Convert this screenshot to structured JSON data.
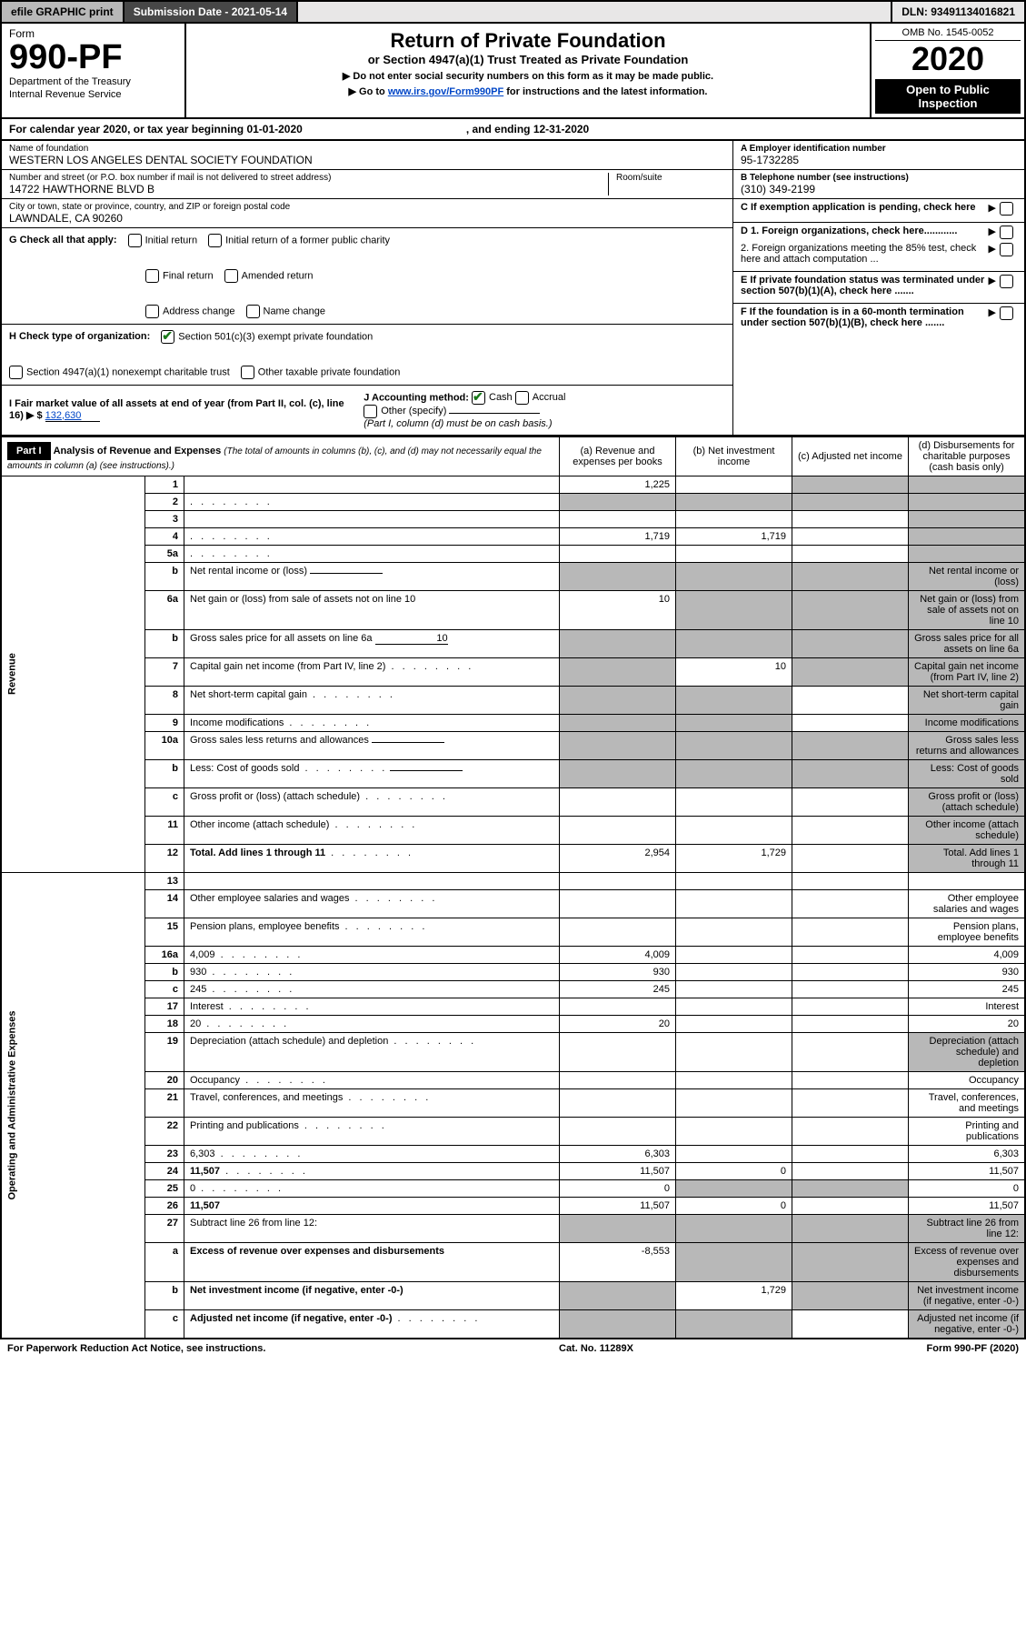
{
  "topbar": {
    "efile": "efile GRAPHIC print",
    "sub_date": "Submission Date - 2021-05-14",
    "dln": "DLN: 93491134016821"
  },
  "header": {
    "form_word": "Form",
    "form_number": "990-PF",
    "dept1": "Department of the Treasury",
    "dept2": "Internal Revenue Service",
    "title": "Return of Private Foundation",
    "subtitle": "or Section 4947(a)(1) Trust Treated as Private Foundation",
    "note1": "▶ Do not enter social security numbers on this form as it may be made public.",
    "note2_pre": "▶ Go to ",
    "note2_link": "www.irs.gov/Form990PF",
    "note2_post": " for instructions and the latest information.",
    "omb": "OMB No. 1545-0052",
    "year": "2020",
    "open": "Open to Public Inspection"
  },
  "calyear": {
    "txt1": "For calendar year 2020, or tax year beginning 01-01-2020",
    "txt2": ", and ending 12-31-2020"
  },
  "info": {
    "name_label": "Name of foundation",
    "name_val": "WESTERN LOS ANGELES DENTAL SOCIETY FOUNDATION",
    "addr_label": "Number and street (or P.O. box number if mail is not delivered to street address)",
    "addr_val": "14722 HAWTHORNE BLVD B",
    "room_label": "Room/suite",
    "city_label": "City or town, state or province, country, and ZIP or foreign postal code",
    "city_val": "LAWNDALE, CA  90260",
    "ein_label": "A Employer identification number",
    "ein_val": "95-1732285",
    "tel_label": "B Telephone number (see instructions)",
    "tel_val": "(310) 349-2199",
    "c_label": "C If exemption application is pending, check here",
    "d1": "D 1. Foreign organizations, check here............",
    "d2": "2. Foreign organizations meeting the 85% test, check here and attach computation ...",
    "e": "E  If private foundation status was terminated under section 507(b)(1)(A), check here .......",
    "f": "F  If the foundation is in a 60-month termination under section 507(b)(1)(B), check here ......."
  },
  "g": {
    "label": "G Check all that apply:",
    "initial": "Initial return",
    "final": "Final return",
    "address": "Address change",
    "initial_former": "Initial return of a former public charity",
    "amended": "Amended return",
    "name": "Name change"
  },
  "h": {
    "label": "H Check type of organization:",
    "c3": "Section 501(c)(3) exempt private foundation",
    "trust": "Section 4947(a)(1) nonexempt charitable trust",
    "other": "Other taxable private foundation"
  },
  "i": {
    "label": "I Fair market value of all assets at end of year (from Part II, col. (c), line 16) ▶ $",
    "val": "132,630"
  },
  "j": {
    "label": "J Accounting method:",
    "cash": "Cash",
    "accrual": "Accrual",
    "other": "Other (specify)",
    "note": "(Part I, column (d) must be on cash basis.)"
  },
  "part1": {
    "label": "Part I",
    "title": "Analysis of Revenue and Expenses",
    "title_note": " (The total of amounts in columns (b), (c), and (d) may not necessarily equal the amounts in column (a) (see instructions).)",
    "col_a": "(a)   Revenue and expenses per books",
    "col_b": "(b)   Net investment income",
    "col_c": "(c)   Adjusted net income",
    "col_d": "(d)   Disbursements for charitable purposes (cash basis only)"
  },
  "vert": {
    "revenue": "Revenue",
    "expenses": "Operating and Administrative Expenses"
  },
  "rows": [
    {
      "n": "1",
      "d": "",
      "a": "1,225",
      "b": "",
      "c": "",
      "shade_c": true,
      "shade_d": true
    },
    {
      "n": "2",
      "d": "",
      "dots": true,
      "a": "",
      "b": "",
      "c": "",
      "shade_all": true
    },
    {
      "n": "3",
      "d": "",
      "a": "",
      "b": "",
      "c": "",
      "shade_d": true
    },
    {
      "n": "4",
      "d": "",
      "dots": true,
      "a": "1,719",
      "b": "1,719",
      "c": "",
      "shade_d": true
    },
    {
      "n": "5a",
      "d": "",
      "dots": true,
      "a": "",
      "b": "",
      "c": "",
      "shade_d": true
    },
    {
      "n": "b",
      "d": "Net rental income or (loss)",
      "underline": true,
      "shade_all": true
    },
    {
      "n": "6a",
      "d": "Net gain or (loss) from sale of assets not on line 10",
      "a": "10",
      "shade_bcd": true
    },
    {
      "n": "b",
      "d": "Gross sales price for all assets on line 6a",
      "underline": true,
      "uval": "10",
      "shade_all": true
    },
    {
      "n": "7",
      "d": "Capital gain net income (from Part IV, line 2)",
      "dots": true,
      "b": "10",
      "shade_a": true,
      "shade_cd": true
    },
    {
      "n": "8",
      "d": "Net short-term capital gain",
      "dots": true,
      "shade_ab": true,
      "shade_d": true
    },
    {
      "n": "9",
      "d": "Income modifications",
      "dots": true,
      "shade_ab": true,
      "shade_d": true
    },
    {
      "n": "10a",
      "d": "Gross sales less returns and allowances",
      "underline": true,
      "shade_all": true
    },
    {
      "n": "b",
      "d": "Less: Cost of goods sold",
      "dots": true,
      "underline": true,
      "shade_all": true
    },
    {
      "n": "c",
      "d": "Gross profit or (loss) (attach schedule)",
      "dots": true,
      "shade_d": true
    },
    {
      "n": "11",
      "d": "Other income (attach schedule)",
      "dots": true,
      "shade_d": true
    },
    {
      "n": "12",
      "d": "Total. Add lines 1 through 11",
      "bold": true,
      "dots": true,
      "a": "2,954",
      "b": "1,729",
      "shade_d": true
    },
    {
      "n": "13",
      "d": "",
      "a": "",
      "b": "",
      "c": ""
    },
    {
      "n": "14",
      "d": "Other employee salaries and wages",
      "dots": true
    },
    {
      "n": "15",
      "d": "Pension plans, employee benefits",
      "dots": true
    },
    {
      "n": "16a",
      "d": "4,009",
      "dots": true,
      "a": "4,009"
    },
    {
      "n": "b",
      "d": "930",
      "dots": true,
      "a": "930"
    },
    {
      "n": "c",
      "d": "245",
      "dots": true,
      "a": "245"
    },
    {
      "n": "17",
      "d": "Interest",
      "dots": true
    },
    {
      "n": "18",
      "d": "20",
      "dots": true,
      "a": "20"
    },
    {
      "n": "19",
      "d": "Depreciation (attach schedule) and depletion",
      "dots": true,
      "shade_d": true
    },
    {
      "n": "20",
      "d": "Occupancy",
      "dots": true
    },
    {
      "n": "21",
      "d": "Travel, conferences, and meetings",
      "dots": true
    },
    {
      "n": "22",
      "d": "Printing and publications",
      "dots": true
    },
    {
      "n": "23",
      "d": "6,303",
      "dots": true,
      "a": "6,303"
    },
    {
      "n": "24",
      "d": "11,507",
      "bold": true,
      "dots": true,
      "a": "11,507",
      "b": "0"
    },
    {
      "n": "25",
      "d": "0",
      "dots": true,
      "a": "0",
      "shade_bc": true
    },
    {
      "n": "26",
      "d": "11,507",
      "bold": true,
      "a": "11,507",
      "b": "0"
    },
    {
      "n": "27",
      "d": "Subtract line 26 from line 12:",
      "shade_all": true
    },
    {
      "n": "a",
      "d": "Excess of revenue over expenses and disbursements",
      "bold": true,
      "a": "-8,553",
      "shade_bcd": true
    },
    {
      "n": "b",
      "d": "Net investment income (if negative, enter -0-)",
      "bold": true,
      "b": "1,729",
      "shade_a": true,
      "shade_cd": true
    },
    {
      "n": "c",
      "d": "Adjusted net income (if negative, enter -0-)",
      "bold": true,
      "dots": true,
      "shade_ab": true,
      "shade_d": true
    }
  ],
  "footer": {
    "left": "For Paperwork Reduction Act Notice, see instructions.",
    "mid": "Cat. No. 11289X",
    "right": "Form 990-PF (2020)"
  }
}
